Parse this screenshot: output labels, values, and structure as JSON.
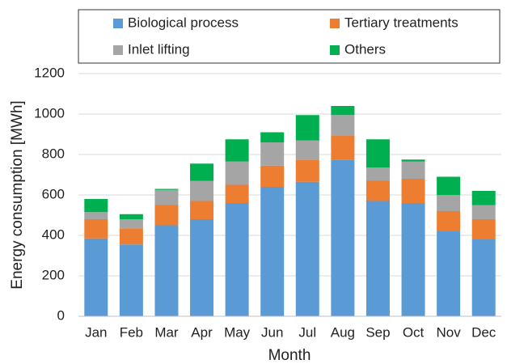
{
  "chart_data": {
    "type": "stacked_bar",
    "xlabel": "Month",
    "ylabel": "Energy consumption [MWh]",
    "categories": [
      "Jan",
      "Feb",
      "Mar",
      "Apr",
      "May",
      "Jun",
      "Jul",
      "Aug",
      "Sep",
      "Oct",
      "Nov",
      "Dec"
    ],
    "series": [
      {
        "name": "Biological process",
        "color": "#5b9bd5",
        "values": [
          385,
          355,
          450,
          480,
          560,
          640,
          665,
          775,
          570,
          560,
          420,
          380
        ]
      },
      {
        "name": "Tertiary treatments",
        "color": "#ed7d31",
        "values": [
          95,
          80,
          100,
          90,
          90,
          105,
          110,
          120,
          100,
          120,
          100,
          100
        ]
      },
      {
        "name": "Inlet lifting",
        "color": "#a5a5a5",
        "values": [
          35,
          45,
          75,
          100,
          115,
          115,
          95,
          100,
          65,
          85,
          80,
          70
        ]
      },
      {
        "name": "Others",
        "color": "#00b050",
        "values": [
          65,
          25,
          5,
          85,
          110,
          50,
          125,
          45,
          140,
          10,
          90,
          70
        ]
      }
    ],
    "ylim": [
      0,
      1200
    ],
    "yticks": [
      0,
      200,
      400,
      600,
      800,
      1000,
      1200
    ],
    "grid": true
  }
}
